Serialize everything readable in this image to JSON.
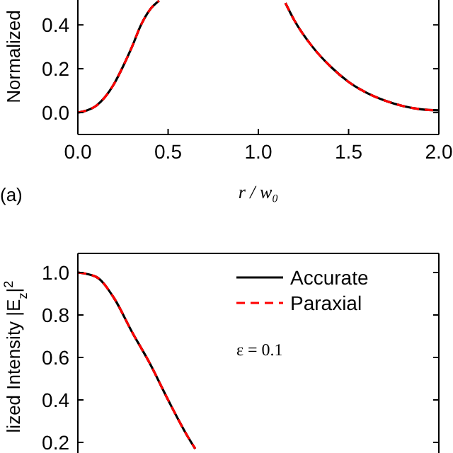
{
  "chart_data": [
    {
      "type": "line",
      "xlabel": "r / w₀",
      "ylabel": "Normalized",
      "annotations": [
        "(a)"
      ],
      "xlim": [
        0,
        2
      ],
      "xticks": [
        {
          "value": 0,
          "label": "0.0"
        },
        0.5,
        {
          "value": 1,
          "label": "1.0"
        },
        1.5,
        {
          "value": 2,
          "label": "2.0"
        }
      ],
      "ylim": [
        -0.1,
        0.52
      ],
      "yticks": [
        {
          "value": 0,
          "label": "0.0"
        },
        0.2,
        0.4
      ],
      "x": [
        0,
        0.05,
        0.1,
        0.15,
        0.2,
        0.25,
        0.3,
        0.35,
        0.4,
        0.45,
        0.5,
        1.1,
        1.15,
        1.2,
        1.3,
        1.4,
        1.5,
        1.6,
        1.7,
        1.8,
        1.9,
        2.0
      ],
      "series": [
        {
          "color": "#000000",
          "line_style": "solid",
          "values": [
            0,
            0.01,
            0.03,
            0.07,
            0.13,
            0.21,
            0.3,
            0.4,
            0.47,
            0.51,
            null,
            null,
            0.5,
            0.42,
            0.3,
            0.21,
            0.14,
            0.09,
            0.055,
            0.03,
            0.015,
            0.01
          ]
        },
        {
          "color": "#ff0000",
          "line_style": "dashed",
          "values": [
            0,
            0.01,
            0.03,
            0.07,
            0.13,
            0.21,
            0.3,
            0.4,
            0.47,
            0.51,
            null,
            null,
            0.5,
            0.42,
            0.3,
            0.21,
            0.14,
            0.09,
            0.055,
            0.03,
            0.015,
            0.01
          ]
        }
      ],
      "legend": false
    },
    {
      "type": "line",
      "ylabel": "lized Intensity |E$_{z}$|$^{2}$",
      "annotations": [
        "ε = 0.1"
      ],
      "xlim": [
        0,
        2
      ],
      "tick_labels": "y",
      "ylim": [
        0.15,
        1.09
      ],
      "yticks": [
        0.2,
        0.4,
        0.6,
        0.8,
        {
          "value": 1,
          "label": "1.0"
        }
      ],
      "x": [
        0,
        0.1,
        0.2,
        0.3,
        0.4,
        0.5,
        0.6,
        0.65
      ],
      "series": [
        {
          "name": "Accurate",
          "color": "#000000",
          "line_style": "solid",
          "values": [
            1.0,
            0.98,
            0.88,
            0.72,
            0.57,
            0.4,
            0.24,
            0.17
          ]
        },
        {
          "name": "Paraxial",
          "color": "#ff0000",
          "line_style": "dashed",
          "values": [
            1.0,
            0.98,
            0.88,
            0.72,
            0.57,
            0.4,
            0.24,
            0.17
          ]
        }
      ],
      "legend": "top right"
    }
  ]
}
